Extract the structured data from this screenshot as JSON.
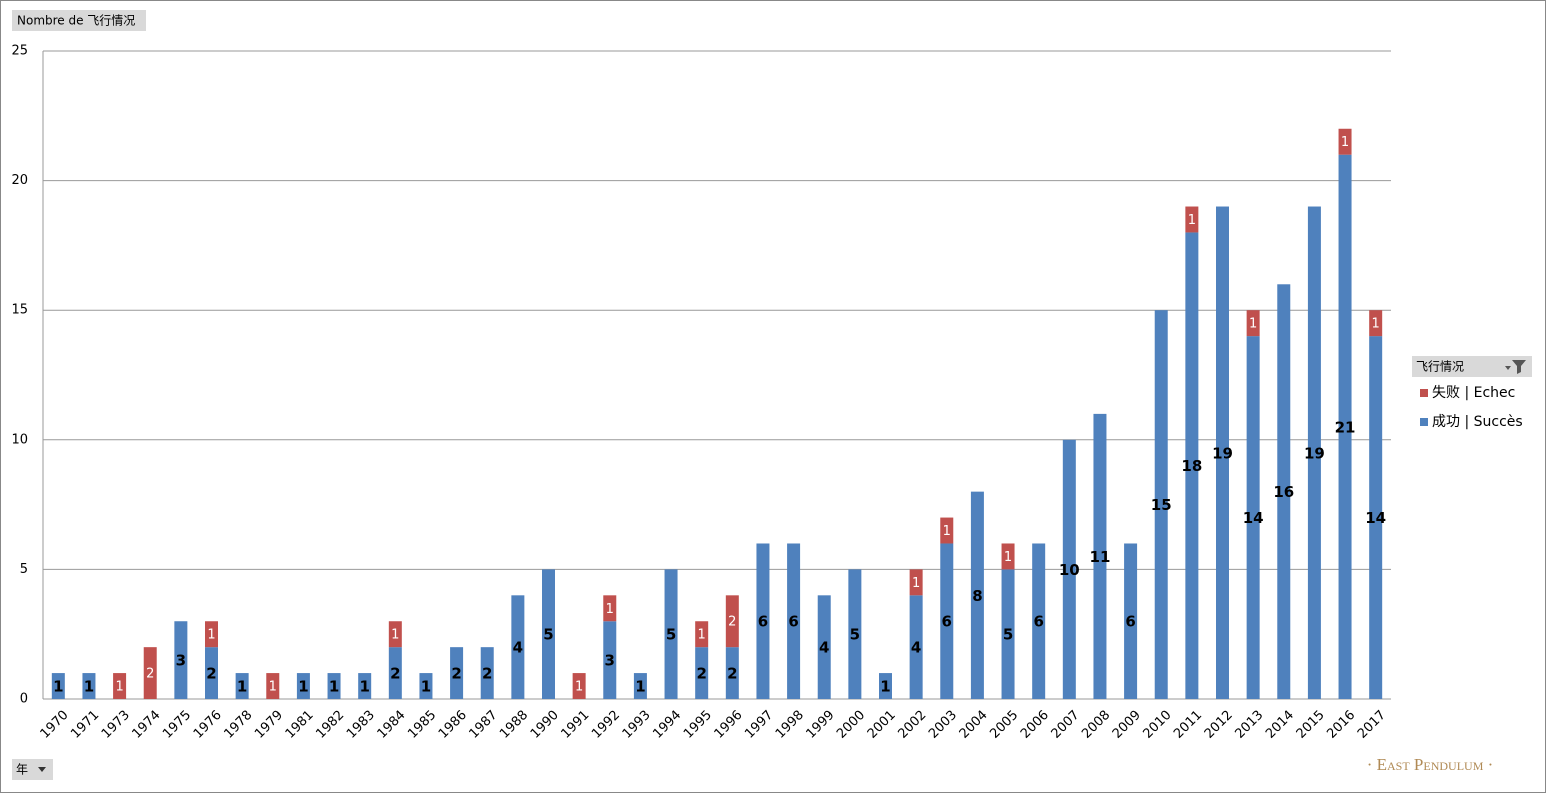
{
  "chart_data": {
    "type": "bar",
    "stacked": true,
    "field_button": "Nombre de 飞行情况",
    "legend_title": "飞行情况",
    "axis_button": "年",
    "watermark": "· East Pendulum ·",
    "categories": [
      "1970",
      "1971",
      "1973",
      "1974",
      "1975",
      "1976",
      "1978",
      "1979",
      "1981",
      "1982",
      "1983",
      "1984",
      "1985",
      "1986",
      "1987",
      "1988",
      "1990",
      "1991",
      "1992",
      "1993",
      "1994",
      "1995",
      "1996",
      "1997",
      "1998",
      "1999",
      "2000",
      "2001",
      "2002",
      "2003",
      "2004",
      "2005",
      "2006",
      "2007",
      "2008",
      "2009",
      "2010",
      "2011",
      "2012",
      "2013",
      "2014",
      "2015",
      "2016",
      "2017"
    ],
    "series": [
      {
        "name": "失败 | Echec",
        "color": "#c0504d",
        "label_color": "#ffffff",
        "values": [
          null,
          null,
          1,
          2,
          null,
          1,
          null,
          1,
          null,
          null,
          null,
          1,
          null,
          null,
          null,
          null,
          null,
          1,
          1,
          null,
          null,
          1,
          2,
          null,
          null,
          null,
          null,
          null,
          1,
          1,
          null,
          1,
          null,
          null,
          null,
          null,
          null,
          1,
          null,
          1,
          null,
          null,
          1,
          1
        ]
      },
      {
        "name": "成功 | Succès",
        "color": "#4f81bd",
        "label_color": "#000000",
        "values": [
          1,
          1,
          null,
          null,
          3,
          2,
          1,
          null,
          1,
          1,
          1,
          2,
          1,
          2,
          2,
          4,
          5,
          null,
          3,
          1,
          5,
          2,
          2,
          6,
          6,
          4,
          5,
          1,
          4,
          6,
          8,
          5,
          6,
          10,
          11,
          6,
          15,
          18,
          19,
          14,
          16,
          19,
          21,
          14
        ]
      }
    ],
    "ylim": [
      0,
      25
    ],
    "yticks": [
      0,
      5,
      10,
      15,
      20,
      25
    ],
    "grid": true,
    "legend": "right"
  }
}
